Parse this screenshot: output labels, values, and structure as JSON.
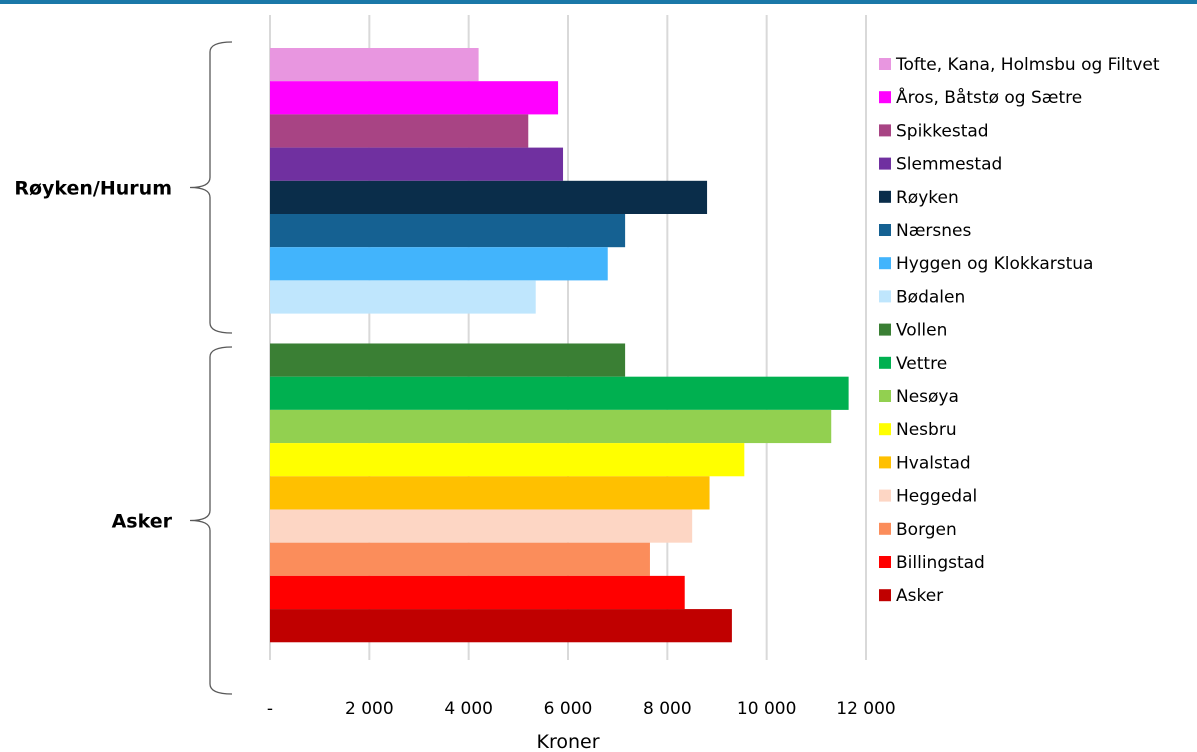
{
  "chart_data": {
    "type": "bar",
    "orientation": "horizontal",
    "xlabel": "Kroner",
    "xlim": [
      0,
      12000
    ],
    "x_ticks": [
      0,
      2000,
      4000,
      6000,
      8000,
      10000,
      12000
    ],
    "x_tick_labels": [
      "-",
      "2 000",
      "4 000",
      "6 000",
      "8 000",
      "10 000",
      "12 000"
    ],
    "grid": "vertical",
    "legend_position": "right",
    "groups": [
      {
        "label": "Røyken/Hurum",
        "bars": [
          {
            "name": "Tofte, Kana, Holmsbu og Filtvet",
            "value": 4200,
            "color": "#e896e0"
          },
          {
            "name": "Åros, Båtstø og Sætre",
            "value": 5800,
            "color": "#ff00ff"
          },
          {
            "name": "Spikkestad",
            "value": 5200,
            "color": "#a84484"
          },
          {
            "name": "Slemmestad",
            "value": 5900,
            "color": "#7030a0"
          },
          {
            "name": "Røyken",
            "value": 8800,
            "color": "#0a2d4a"
          },
          {
            "name": "Nærsnes",
            "value": 7150,
            "color": "#156192"
          },
          {
            "name": "Hyggen og Klokkarstua",
            "value": 6800,
            "color": "#42b4fc"
          },
          {
            "name": "Bødalen",
            "value": 5350,
            "color": "#bfe6fd"
          }
        ]
      },
      {
        "label": "Asker",
        "bars": [
          {
            "name": "Vollen",
            "value": 7150,
            "color": "#3a7f34"
          },
          {
            "name": "Vettre",
            "value": 11650,
            "color": "#00b050"
          },
          {
            "name": "Nesøya",
            "value": 11300,
            "color": "#92d050"
          },
          {
            "name": "Nesbru",
            "value": 9550,
            "color": "#ffff00"
          },
          {
            "name": "Hvalstad",
            "value": 8850,
            "color": "#ffc000"
          },
          {
            "name": "Heggedal",
            "value": 8500,
            "color": "#fdd6c4"
          },
          {
            "name": "Borgen",
            "value": 7650,
            "color": "#fb8d5b"
          },
          {
            "name": "Billingstad",
            "value": 8350,
            "color": "#ff0000"
          },
          {
            "name": "Asker",
            "value": 9300,
            "color": "#c00000"
          }
        ]
      }
    ]
  }
}
